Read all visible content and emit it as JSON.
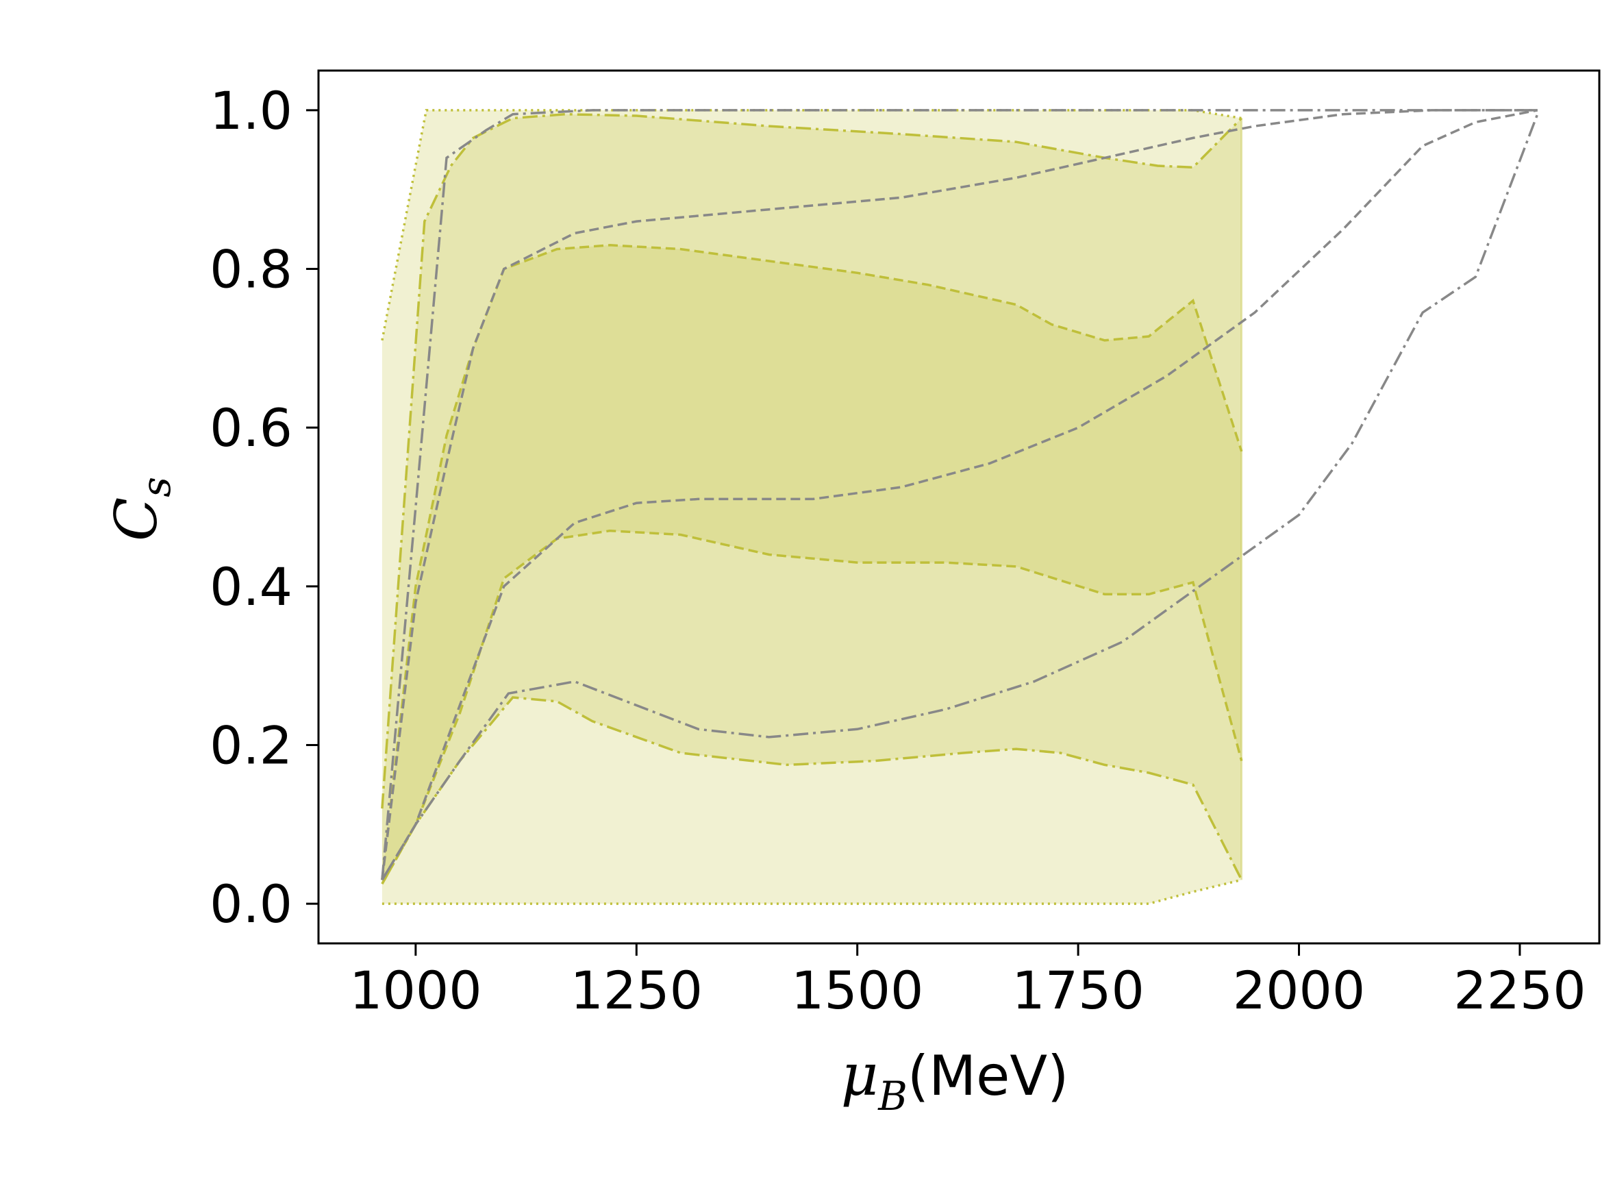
{
  "chart_data": {
    "type": "area",
    "xlabel": {
      "symbol": "μ",
      "sub": "B",
      "unit": "(MeV)"
    },
    "ylabel": {
      "symbol": "C",
      "sub": "s"
    },
    "xlim": [
      890,
      2340
    ],
    "ylim": [
      -0.05,
      1.05
    ],
    "xticks": [
      1000,
      1250,
      1500,
      1750,
      2000,
      2250
    ],
    "yticks": [
      0.0,
      0.2,
      0.4,
      0.6,
      0.8,
      1.0
    ],
    "xtick_labels": [
      "1000",
      "1250",
      "1500",
      "1750",
      "2000",
      "2250"
    ],
    "ytick_labels": [
      "0.0",
      "0.2",
      "0.4",
      "0.6",
      "0.8",
      "1.0"
    ],
    "grid": false,
    "colors": {
      "band": "#c8c84a",
      "band_line": "#bfbf3a",
      "gray": "#888888"
    },
    "bands": [
      {
        "style": "dotted",
        "opacity": 0.25,
        "upper": [
          [
            962,
            0.71
          ],
          [
            1012,
            1.0
          ],
          [
            1880,
            1.0
          ],
          [
            1935,
            0.99
          ]
        ],
        "lower": [
          [
            962,
            0.0
          ],
          [
            1830,
            0.0
          ],
          [
            1880,
            0.015
          ],
          [
            1935,
            0.03
          ]
        ]
      },
      {
        "style": "dashdot",
        "opacity": 0.25,
        "upper": [
          [
            962,
            0.12
          ],
          [
            1010,
            0.86
          ],
          [
            1040,
            0.93
          ],
          [
            1065,
            0.965
          ],
          [
            1110,
            0.99
          ],
          [
            1170,
            0.995
          ],
          [
            1250,
            0.993
          ],
          [
            1400,
            0.98
          ],
          [
            1550,
            0.97
          ],
          [
            1680,
            0.96
          ],
          [
            1780,
            0.94
          ],
          [
            1840,
            0.93
          ],
          [
            1880,
            0.928
          ],
          [
            1935,
            0.99
          ]
        ],
        "lower": [
          [
            962,
            0.025
          ],
          [
            1000,
            0.1
          ],
          [
            1050,
            0.18
          ],
          [
            1110,
            0.26
          ],
          [
            1160,
            0.255
          ],
          [
            1200,
            0.23
          ],
          [
            1300,
            0.19
          ],
          [
            1420,
            0.175
          ],
          [
            1520,
            0.18
          ],
          [
            1620,
            0.19
          ],
          [
            1680,
            0.195
          ],
          [
            1730,
            0.19
          ],
          [
            1780,
            0.175
          ],
          [
            1830,
            0.165
          ],
          [
            1880,
            0.15
          ],
          [
            1935,
            0.03
          ]
        ]
      },
      {
        "style": "dashed",
        "opacity": 0.25,
        "upper": [
          [
            962,
            0.03
          ],
          [
            1000,
            0.4
          ],
          [
            1035,
            0.59
          ],
          [
            1065,
            0.7
          ],
          [
            1100,
            0.8
          ],
          [
            1160,
            0.825
          ],
          [
            1220,
            0.83
          ],
          [
            1300,
            0.825
          ],
          [
            1400,
            0.81
          ],
          [
            1500,
            0.795
          ],
          [
            1580,
            0.78
          ],
          [
            1680,
            0.755
          ],
          [
            1720,
            0.73
          ],
          [
            1780,
            0.71
          ],
          [
            1830,
            0.715
          ],
          [
            1880,
            0.76
          ],
          [
            1935,
            0.57
          ]
        ],
        "lower": [
          [
            962,
            0.025
          ],
          [
            1000,
            0.1
          ],
          [
            1050,
            0.24
          ],
          [
            1100,
            0.41
          ],
          [
            1160,
            0.46
          ],
          [
            1220,
            0.47
          ],
          [
            1300,
            0.465
          ],
          [
            1400,
            0.44
          ],
          [
            1500,
            0.43
          ],
          [
            1600,
            0.43
          ],
          [
            1680,
            0.425
          ],
          [
            1780,
            0.39
          ],
          [
            1830,
            0.39
          ],
          [
            1880,
            0.405
          ],
          [
            1935,
            0.18
          ]
        ]
      }
    ],
    "gray_lines": [
      {
        "style": "dashdot",
        "points": [
          [
            962,
            0.03
          ],
          [
            1000,
            0.5
          ],
          [
            1035,
            0.94
          ],
          [
            1080,
            0.975
          ],
          [
            1110,
            0.995
          ],
          [
            1200,
            1.0
          ],
          [
            1500,
            1.0
          ],
          [
            1800,
            1.0
          ],
          [
            2000,
            1.0
          ],
          [
            2270,
            1.0
          ]
        ]
      },
      {
        "style": "dashed",
        "points": [
          [
            962,
            0.03
          ],
          [
            1000,
            0.38
          ],
          [
            1040,
            0.58
          ],
          [
            1065,
            0.7
          ],
          [
            1100,
            0.8
          ],
          [
            1180,
            0.845
          ],
          [
            1250,
            0.86
          ],
          [
            1400,
            0.875
          ],
          [
            1550,
            0.89
          ],
          [
            1680,
            0.915
          ],
          [
            1780,
            0.94
          ],
          [
            1880,
            0.965
          ],
          [
            1950,
            0.98
          ],
          [
            2050,
            0.995
          ],
          [
            2150,
            1.0
          ],
          [
            2270,
            1.0
          ]
        ]
      },
      {
        "style": "dashed",
        "points": [
          [
            962,
            0.03
          ],
          [
            1000,
            0.1
          ],
          [
            1050,
            0.25
          ],
          [
            1100,
            0.4
          ],
          [
            1180,
            0.48
          ],
          [
            1250,
            0.505
          ],
          [
            1320,
            0.51
          ],
          [
            1450,
            0.51
          ],
          [
            1550,
            0.525
          ],
          [
            1650,
            0.555
          ],
          [
            1750,
            0.6
          ],
          [
            1850,
            0.665
          ],
          [
            1950,
            0.745
          ],
          [
            2050,
            0.85
          ],
          [
            2140,
            0.955
          ],
          [
            2200,
            0.985
          ],
          [
            2270,
            1.0
          ]
        ]
      },
      {
        "style": "dashdot",
        "points": [
          [
            962,
            0.03
          ],
          [
            1000,
            0.1
          ],
          [
            1050,
            0.18
          ],
          [
            1105,
            0.265
          ],
          [
            1180,
            0.28
          ],
          [
            1250,
            0.25
          ],
          [
            1320,
            0.22
          ],
          [
            1400,
            0.21
          ],
          [
            1500,
            0.22
          ],
          [
            1600,
            0.245
          ],
          [
            1700,
            0.28
          ],
          [
            1800,
            0.33
          ],
          [
            1900,
            0.41
          ],
          [
            2000,
            0.49
          ],
          [
            2060,
            0.58
          ],
          [
            2140,
            0.745
          ],
          [
            2200,
            0.79
          ],
          [
            2270,
            0.995
          ]
        ]
      }
    ]
  }
}
